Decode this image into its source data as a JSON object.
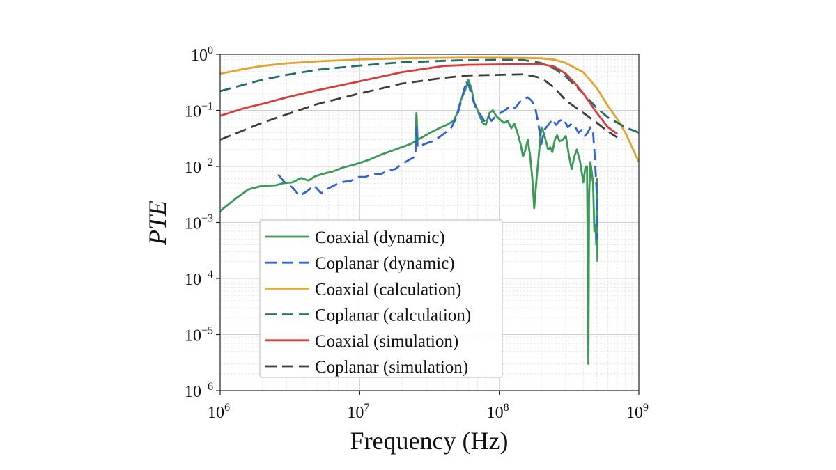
{
  "chart_data": {
    "type": "line",
    "title": "",
    "xlabel": "Frequency (Hz)",
    "ylabel": "PTE",
    "xscale": "log",
    "yscale": "log",
    "xlim": [
      1000000,
      1000000000
    ],
    "ylim": [
      1e-06,
      1
    ],
    "x_ticks": [
      {
        "base": "10",
        "exp": "6",
        "value": 1000000
      },
      {
        "base": "10",
        "exp": "7",
        "value": 10000000
      },
      {
        "base": "10",
        "exp": "8",
        "value": 100000000
      },
      {
        "base": "10",
        "exp": "9",
        "value": 1000000000
      }
    ],
    "y_ticks": [
      {
        "base": "10",
        "exp": "0",
        "value": 1
      },
      {
        "base": "10",
        "exp": "−1",
        "value": 0.1
      },
      {
        "base": "10",
        "exp": "−2",
        "value": 0.01
      },
      {
        "base": "10",
        "exp": "−3",
        "value": 0.001
      },
      {
        "base": "10",
        "exp": "−4",
        "value": 0.0001
      },
      {
        "base": "10",
        "exp": "−5",
        "value": 1e-05
      },
      {
        "base": "10",
        "exp": "−6",
        "value": 1e-06
      }
    ],
    "grid": true,
    "minor_grid": true,
    "legend_position": "lower-left",
    "series": [
      {
        "name": "Coaxial (dynamic)",
        "color": "#3a9a56",
        "dash": "solid",
        "points": [
          [
            1000000,
            0.0016
          ],
          [
            1300000,
            0.0027
          ],
          [
            1600000,
            0.0039
          ],
          [
            2000000,
            0.0045
          ],
          [
            2500000,
            0.0046
          ],
          [
            2800000,
            0.005
          ],
          [
            3300000,
            0.0052
          ],
          [
            3800000,
            0.0062
          ],
          [
            4300000,
            0.0056
          ],
          [
            4800000,
            0.0067
          ],
          [
            5500000,
            0.0074
          ],
          [
            6500000,
            0.0082
          ],
          [
            7500000,
            0.0095
          ],
          [
            8800000,
            0.0105
          ],
          [
            10000000,
            0.0115
          ],
          [
            12000000,
            0.0135
          ],
          [
            14000000,
            0.016
          ],
          [
            17000000,
            0.019
          ],
          [
            20000000,
            0.022
          ],
          [
            23000000,
            0.025
          ],
          [
            25000000,
            0.028
          ],
          [
            25500000,
            0.09
          ],
          [
            26000000,
            0.03
          ],
          [
            28000000,
            0.033
          ],
          [
            32000000,
            0.04
          ],
          [
            37000000,
            0.048
          ],
          [
            42000000,
            0.055
          ],
          [
            47000000,
            0.065
          ],
          [
            50000000,
            0.09
          ],
          [
            53000000,
            0.15
          ],
          [
            57000000,
            0.23
          ],
          [
            60000000,
            0.35
          ],
          [
            63000000,
            0.25
          ],
          [
            66000000,
            0.14
          ],
          [
            70000000,
            0.1
          ],
          [
            73000000,
            0.075
          ],
          [
            76000000,
            0.06
          ],
          [
            80000000,
            0.055
          ],
          [
            85000000,
            0.09
          ],
          [
            90000000,
            0.1
          ],
          [
            95000000,
            0.08
          ],
          [
            100000000,
            0.07
          ],
          [
            108000000,
            0.06
          ],
          [
            115000000,
            0.065
          ],
          [
            122000000,
            0.048
          ],
          [
            128000000,
            0.058
          ],
          [
            135000000,
            0.04
          ],
          [
            142000000,
            0.025
          ],
          [
            148000000,
            0.015
          ],
          [
            154000000,
            0.02
          ],
          [
            160000000,
            0.03
          ],
          [
            166000000,
            0.016
          ],
          [
            172000000,
            0.0065
          ],
          [
            178000000,
            0.0018
          ],
          [
            185000000,
            0.006
          ],
          [
            192000000,
            0.016
          ],
          [
            200000000,
            0.05
          ],
          [
            208000000,
            0.04
          ],
          [
            216000000,
            0.028
          ],
          [
            224000000,
            0.02
          ],
          [
            232000000,
            0.022
          ],
          [
            240000000,
            0.018
          ],
          [
            250000000,
            0.03
          ],
          [
            260000000,
            0.036
          ],
          [
            270000000,
            0.028
          ],
          [
            285000000,
            0.03
          ],
          [
            300000000,
            0.035
          ],
          [
            315000000,
            0.016
          ],
          [
            330000000,
            0.009
          ],
          [
            345000000,
            0.015
          ],
          [
            360000000,
            0.02
          ],
          [
            380000000,
            0.012
          ],
          [
            400000000,
            0.0052
          ],
          [
            415000000,
            0.01
          ],
          [
            425000000,
            0.01
          ],
          [
            430000000,
            0.0003
          ],
          [
            435000000,
            3e-06
          ],
          [
            440000000,
            0.003
          ],
          [
            450000000,
            0.012
          ],
          [
            460000000,
            0.008
          ],
          [
            470000000,
            0.005
          ],
          [
            480000000,
            0.0007
          ],
          [
            490000000,
            0.0009
          ],
          [
            495000000,
            0.0004
          ],
          [
            500000000,
            0.006
          ],
          [
            505000000,
            0.0002
          ]
        ]
      },
      {
        "name": "Coplanar (dynamic)",
        "color": "#2f63d0",
        "dash": "dashed",
        "points": [
          [
            2600000,
            0.0072
          ],
          [
            2900000,
            0.0052
          ],
          [
            3300000,
            0.0042
          ],
          [
            3700000,
            0.003
          ],
          [
            4200000,
            0.0036
          ],
          [
            4700000,
            0.0046
          ],
          [
            5300000,
            0.0033
          ],
          [
            5900000,
            0.004
          ],
          [
            6700000,
            0.0047
          ],
          [
            7600000,
            0.0053
          ],
          [
            8600000,
            0.0055
          ],
          [
            9800000,
            0.0065
          ],
          [
            11000000,
            0.0065
          ],
          [
            12500000,
            0.0075
          ],
          [
            14000000,
            0.0072
          ],
          [
            16000000,
            0.0085
          ],
          [
            18000000,
            0.009
          ],
          [
            20000000,
            0.011
          ],
          [
            22500000,
            0.013
          ],
          [
            25000000,
            0.015
          ],
          [
            25500000,
            0.05
          ],
          [
            26000000,
            0.022
          ],
          [
            29000000,
            0.025
          ],
          [
            33000000,
            0.028
          ],
          [
            37000000,
            0.033
          ],
          [
            41000000,
            0.04
          ],
          [
            45000000,
            0.048
          ],
          [
            50000000,
            0.08
          ],
          [
            55000000,
            0.2
          ],
          [
            58000000,
            0.33
          ],
          [
            61000000,
            0.26
          ],
          [
            65000000,
            0.15
          ],
          [
            69000000,
            0.1
          ],
          [
            73000000,
            0.085
          ],
          [
            78000000,
            0.065
          ],
          [
            83000000,
            0.08
          ],
          [
            88000000,
            0.065
          ],
          [
            95000000,
            0.08
          ],
          [
            102000000,
            0.09
          ],
          [
            110000000,
            0.1
          ],
          [
            120000000,
            0.12
          ],
          [
            130000000,
            0.11
          ],
          [
            140000000,
            0.14
          ],
          [
            150000000,
            0.16
          ],
          [
            160000000,
            0.17
          ],
          [
            170000000,
            0.15
          ],
          [
            180000000,
            0.12
          ],
          [
            190000000,
            0.06
          ],
          [
            200000000,
            0.025
          ],
          [
            210000000,
            0.045
          ],
          [
            225000000,
            0.055
          ],
          [
            240000000,
            0.07
          ],
          [
            255000000,
            0.055
          ],
          [
            270000000,
            0.065
          ],
          [
            290000000,
            0.07
          ],
          [
            310000000,
            0.05
          ],
          [
            330000000,
            0.058
          ],
          [
            350000000,
            0.05
          ],
          [
            370000000,
            0.04
          ],
          [
            390000000,
            0.045
          ],
          [
            410000000,
            0.035
          ],
          [
            430000000,
            0.04
          ],
          [
            450000000,
            0.05
          ],
          [
            470000000,
            0.04
          ],
          [
            480000000,
            0.02
          ],
          [
            490000000,
            0.008
          ],
          [
            500000000,
            0.003
          ],
          [
            505000000,
            0.0005
          ]
        ]
      },
      {
        "name": "Coaxial (calculation)",
        "color": "#e3a22b",
        "dash": "solid",
        "points": [
          [
            1000000,
            0.45
          ],
          [
            1500000,
            0.55
          ],
          [
            2000000,
            0.62
          ],
          [
            3000000,
            0.69
          ],
          [
            5000000,
            0.75
          ],
          [
            10000000,
            0.81
          ],
          [
            20000000,
            0.85
          ],
          [
            50000000,
            0.87
          ],
          [
            100000000,
            0.87
          ],
          [
            150000000,
            0.86
          ],
          [
            200000000,
            0.85
          ],
          [
            250000000,
            0.8
          ],
          [
            300000000,
            0.7
          ],
          [
            400000000,
            0.48
          ],
          [
            500000000,
            0.25
          ],
          [
            600000000,
            0.12
          ],
          [
            700000000,
            0.07
          ],
          [
            800000000,
            0.04
          ],
          [
            1000000000,
            0.012
          ]
        ]
      },
      {
        "name": "Coplanar (calculation)",
        "color": "#216b6b",
        "dash": "dashed",
        "points": [
          [
            1000000,
            0.22
          ],
          [
            1500000,
            0.29
          ],
          [
            2000000,
            0.35
          ],
          [
            3000000,
            0.43
          ],
          [
            5000000,
            0.53
          ],
          [
            10000000,
            0.63
          ],
          [
            20000000,
            0.72
          ],
          [
            50000000,
            0.78
          ],
          [
            100000000,
            0.8
          ],
          [
            150000000,
            0.79
          ],
          [
            200000000,
            0.7
          ],
          [
            250000000,
            0.55
          ],
          [
            300000000,
            0.4
          ],
          [
            400000000,
            0.2
          ],
          [
            500000000,
            0.11
          ],
          [
            600000000,
            0.075
          ],
          [
            800000000,
            0.05
          ],
          [
            1000000000,
            0.04
          ]
        ]
      },
      {
        "name": "Coaxial (simulation)",
        "color": "#d93b3b",
        "dash": "solid",
        "points": [
          [
            1000000,
            0.08
          ],
          [
            1500000,
            0.11
          ],
          [
            2000000,
            0.13
          ],
          [
            3000000,
            0.17
          ],
          [
            5000000,
            0.23
          ],
          [
            10000000,
            0.33
          ],
          [
            20000000,
            0.48
          ],
          [
            40000000,
            0.62
          ],
          [
            60000000,
            0.65
          ],
          [
            100000000,
            0.66
          ],
          [
            150000000,
            0.67
          ],
          [
            200000000,
            0.67
          ],
          [
            250000000,
            0.6
          ],
          [
            300000000,
            0.45
          ],
          [
            350000000,
            0.3
          ],
          [
            400000000,
            0.2
          ],
          [
            500000000,
            0.09
          ],
          [
            600000000,
            0.05
          ],
          [
            700000000,
            0.038
          ]
        ]
      },
      {
        "name": "Coplanar (simulation)",
        "color": "#3c3c3c",
        "dash": "dashed",
        "points": [
          [
            1000000,
            0.03
          ],
          [
            1500000,
            0.045
          ],
          [
            2000000,
            0.06
          ],
          [
            3000000,
            0.085
          ],
          [
            5000000,
            0.13
          ],
          [
            10000000,
            0.2
          ],
          [
            20000000,
            0.3
          ],
          [
            40000000,
            0.38
          ],
          [
            60000000,
            0.42
          ],
          [
            100000000,
            0.43
          ],
          [
            150000000,
            0.44
          ],
          [
            200000000,
            0.38
          ],
          [
            250000000,
            0.25
          ],
          [
            300000000,
            0.15
          ],
          [
            400000000,
            0.09
          ],
          [
            500000000,
            0.06
          ],
          [
            600000000,
            0.042
          ],
          [
            700000000,
            0.033
          ]
        ]
      }
    ]
  }
}
